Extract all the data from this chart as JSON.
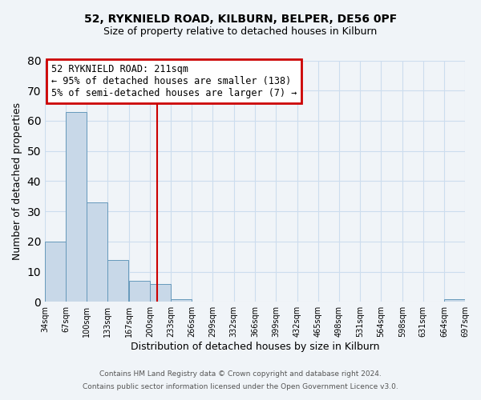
{
  "title_line1": "52, RYKNIELD ROAD, KILBURN, BELPER, DE56 0PF",
  "title_line2": "Size of property relative to detached houses in Kilburn",
  "xlabel": "Distribution of detached houses by size in Kilburn",
  "ylabel": "Number of detached properties",
  "bar_edges": [
    34,
    67,
    100,
    133,
    167,
    200,
    233,
    266,
    299,
    332,
    366,
    399,
    432,
    465,
    498,
    531,
    564,
    598,
    631,
    664,
    697
  ],
  "bar_heights": [
    20,
    63,
    33,
    14,
    7,
    6,
    1,
    0,
    0,
    0,
    0,
    0,
    0,
    0,
    0,
    0,
    0,
    0,
    0,
    1
  ],
  "bar_color": "#c8d8e8",
  "bar_edge_color": "#6699bb",
  "vline_x": 211,
  "vline_color": "#cc0000",
  "ylim": [
    0,
    80
  ],
  "yticks": [
    0,
    10,
    20,
    30,
    40,
    50,
    60,
    70,
    80
  ],
  "annotation_title": "52 RYKNIELD ROAD: 211sqm",
  "annotation_line2": "← 95% of detached houses are smaller (138)",
  "annotation_line3": "5% of semi-detached houses are larger (7) →",
  "annotation_box_color": "#cc0000",
  "grid_color": "#ccddee",
  "bg_color": "#f0f4f8",
  "footer_line1": "Contains HM Land Registry data © Crown copyright and database right 2024.",
  "footer_line2": "Contains public sector information licensed under the Open Government Licence v3.0."
}
